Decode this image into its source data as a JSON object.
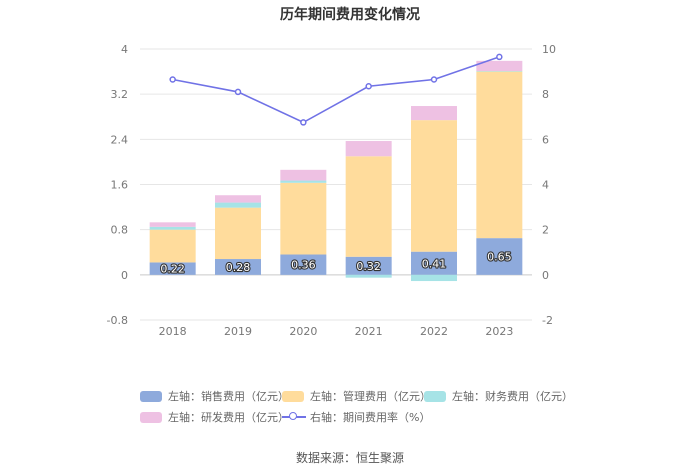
{
  "chart_data": {
    "type": "bar",
    "title": "历年期间费用变化情况",
    "categories": [
      "2018",
      "2019",
      "2020",
      "2021",
      "2022",
      "2023"
    ],
    "stacked": true,
    "series": [
      {
        "name": "左轴：销售费用（亿元）",
        "axis": "left",
        "type": "bar",
        "color": "#8eaadc",
        "values": [
          0.22,
          0.28,
          0.36,
          0.32,
          0.41,
          0.65
        ],
        "data_labels": [
          "0.22",
          "0.28",
          "0.36",
          "0.32",
          "0.41",
          "0.65"
        ]
      },
      {
        "name": "左轴：管理费用（亿元）",
        "axis": "left",
        "type": "bar",
        "color": "#ffdc9c",
        "values": [
          0.58,
          0.91,
          1.27,
          1.78,
          2.33,
          2.95
        ]
      },
      {
        "name": "左轴：财务费用（亿元）",
        "axis": "left",
        "type": "bar",
        "color": "#a6e3e6",
        "values": [
          0.05,
          0.09,
          0.04,
          -0.05,
          -0.11,
          0.01
        ]
      },
      {
        "name": "左轴：研发费用（亿元）",
        "axis": "left",
        "type": "bar",
        "color": "#eec1e3",
        "values": [
          0.08,
          0.13,
          0.19,
          0.27,
          0.25,
          0.18
        ]
      },
      {
        "name": "右轴：期间费用率（%）",
        "axis": "right",
        "type": "line",
        "color": "#7072e6",
        "values": [
          8.65,
          8.1,
          6.75,
          8.35,
          8.65,
          9.65
        ]
      }
    ],
    "left_axis": {
      "ticks": [
        "4",
        "3.2",
        "2.4",
        "1.6",
        "0.8",
        "0",
        "-0.8"
      ],
      "ylim": [
        -0.8,
        4
      ]
    },
    "right_axis": {
      "ticks": [
        "10",
        "8",
        "6",
        "4",
        "2",
        "0",
        "-2"
      ],
      "ylim": [
        -2,
        10
      ]
    },
    "grid": true,
    "legend_position": "bottom"
  },
  "source": "数据来源：恒生聚源"
}
